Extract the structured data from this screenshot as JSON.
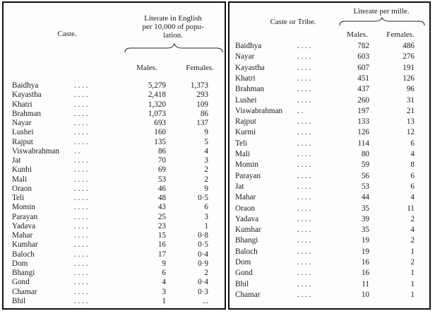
{
  "left_table": {
    "caste_header": "Caste.",
    "literate_header_lines": [
      "Literate in  English",
      "per 10,000 of  popu-",
      "lation."
    ],
    "males_header": "Males.",
    "females_header": "Females.",
    "rows": [
      {
        "caste": "Baidhya",
        "dots": ". .          . .",
        "males": "5,279",
        "females": "1,373"
      },
      {
        "caste": "Kayastha",
        "dots": ". .          . .",
        "males": "2,418",
        "females": "293"
      },
      {
        "caste": "Khatri",
        "dots": ". .          . .",
        "males": "1,320",
        "females": "109"
      },
      {
        "caste": "Brahman",
        "dots": ". .          . .",
        "males": "1,073",
        "females": "86"
      },
      {
        "caste": "Nayar",
        "dots": ". .          . .",
        "males": "693",
        "females": "137"
      },
      {
        "caste": "Lushei",
        "dots": ". .          . .",
        "males": "160",
        "females": "9"
      },
      {
        "caste": "Rajput",
        "dots": ". .          . .",
        "males": "135",
        "females": "5"
      },
      {
        "caste": "Viswabrahman",
        "dots": "          . .",
        "males": "86",
        "females": "4"
      },
      {
        "caste": "Jat",
        "dots": ". .          . .",
        "males": "70",
        "females": "3"
      },
      {
        "caste": "Kunbi",
        "dots": ". .          . .",
        "males": "69",
        "females": "2"
      },
      {
        "caste": "Mali",
        "dots": ". .          . .",
        "males": "53",
        "females": "2"
      },
      {
        "caste": "Oraon",
        "dots": ". .          . .",
        "males": "46",
        "females": "9"
      },
      {
        "caste": "Teli",
        "dots": ". .          . .",
        "males": "48",
        "females": "0·5"
      },
      {
        "caste": "Momin",
        "dots": ". .          . .",
        "males": "43",
        "females": "6"
      },
      {
        "caste": "Parayan",
        "dots": ". .          . .",
        "males": "25",
        "females": "3"
      },
      {
        "caste": "Yadava",
        "dots": ". .          . .",
        "males": "23",
        "females": "1"
      },
      {
        "caste": "Mahar",
        "dots": ". .          . .",
        "males": "15",
        "females": "0·8"
      },
      {
        "caste": "Kumhar",
        "dots": ". .          . .",
        "males": "16",
        "females": "0·5"
      },
      {
        "caste": "Baloch",
        "dots": ". .          . .",
        "males": "17",
        "females": "0·4"
      },
      {
        "caste": "Dom",
        "dots": ". .          . .",
        "males": "9",
        "females": "0·9"
      },
      {
        "caste": "Bhangi",
        "dots": ". .          . .",
        "males": "6",
        "females": "2"
      },
      {
        "caste": "Gond",
        "dots": ". .          . .",
        "males": "4",
        "females": "0·4"
      },
      {
        "caste": "Chamar",
        "dots": ". .          . .",
        "males": "3",
        "females": "0·3"
      },
      {
        "caste": "Bhil",
        "dots": ". .          . .",
        "males": "1",
        "females": "..."
      }
    ]
  },
  "right_table": {
    "caste_header": "Caste or Tribe.",
    "literate_header": "Literate per mille.",
    "males_header": "Males.",
    "females_header": "Females.",
    "rows": [
      {
        "caste": "Baidhya",
        "dots": ". .          . .",
        "males": "782",
        "females": "486"
      },
      {
        "caste": "Nayar",
        "dots": ". .          . .",
        "males": "603",
        "females": "276"
      },
      {
        "caste": "Kayastha",
        "dots": ". .          . .",
        "males": "607",
        "females": "191"
      },
      {
        "caste": "Khatri",
        "dots": ". .          . .",
        "males": "451",
        "females": "126"
      },
      {
        "caste": "Brahman",
        "dots": ". .          . .",
        "males": "437",
        "females": "96"
      },
      {
        "caste": "Lushei",
        "dots": ". .          . .",
        "males": "260",
        "females": "31"
      },
      {
        "caste": "Viswabrahman",
        "dots": ". .",
        "males": "197",
        "females": "21"
      },
      {
        "caste": "Rajput",
        "dots": ". .          . .",
        "males": "133",
        "females": "13"
      },
      {
        "caste": "Kurmi",
        "dots": ". .          . .",
        "males": "126",
        "females": "12"
      },
      {
        "caste": "Teli",
        "dots": ". .          . .",
        "males": "114",
        "females": "6"
      },
      {
        "caste": "Mali",
        "dots": ". .          . .",
        "males": "80",
        "females": "4"
      },
      {
        "caste": "Momin",
        "dots": ". .          . .",
        "males": "59",
        "females": "8"
      },
      {
        "caste": "Parayan",
        "dots": ". .          . .",
        "males": "56",
        "females": "6"
      },
      {
        "caste": "Jat",
        "dots": ". .          . .",
        "males": "53",
        "females": "6"
      },
      {
        "caste": "Mahar",
        "dots": ". .          . .",
        "males": "44",
        "females": "4"
      },
      {
        "caste": "Oraon",
        "dots": ". .          . .",
        "males": "35",
        "females": "11"
      },
      {
        "caste": "Yadava",
        "dots": ". .          . .",
        "males": "39",
        "females": "2"
      },
      {
        "caste": "Kumhar",
        "dots": ". .          . .",
        "males": "35",
        "females": "4"
      },
      {
        "caste": "Bhangi",
        "dots": ". .          . .",
        "males": "19",
        "females": "2"
      },
      {
        "caste": "Baloch",
        "dots": ". .          . .",
        "males": "19",
        "females": "1"
      },
      {
        "caste": "Dom",
        "dots": ". .          . .",
        "males": "16",
        "females": "2"
      },
      {
        "caste": "Gond",
        "dots": ". .          . .",
        "males": "16",
        "females": "1"
      },
      {
        "caste": "Bhil",
        "dots": ". .          . .",
        "males": "11",
        "females": "1"
      },
      {
        "caste": "Chamar",
        "dots": ". .          . .",
        "males": "10",
        "females": "1"
      }
    ]
  }
}
